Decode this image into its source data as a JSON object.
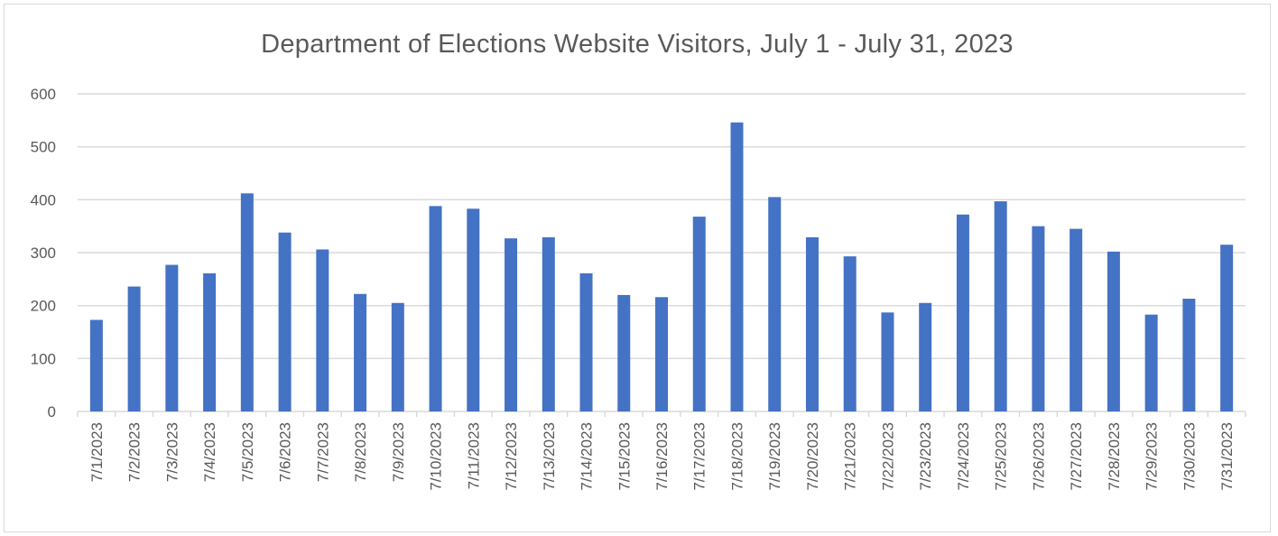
{
  "chart_data": {
    "type": "bar",
    "title": "Department of Elections Website Visitors, July 1 - July 31, 2023",
    "xlabel": "",
    "ylabel": "",
    "categories": [
      "7/1/2023",
      "7/2/2023",
      "7/3/2023",
      "7/4/2023",
      "7/5/2023",
      "7/6/2023",
      "7/7/2023",
      "7/8/2023",
      "7/9/2023",
      "7/10/2023",
      "7/11/2023",
      "7/12/2023",
      "7/13/2023",
      "7/14/2023",
      "7/15/2023",
      "7/16/2023",
      "7/17/2023",
      "7/18/2023",
      "7/19/2023",
      "7/20/2023",
      "7/21/2023",
      "7/22/2023",
      "7/23/2023",
      "7/24/2023",
      "7/25/2023",
      "7/26/2023",
      "7/27/2023",
      "7/28/2023",
      "7/29/2023",
      "7/30/2023",
      "7/31/2023"
    ],
    "values": [
      173,
      236,
      277,
      261,
      412,
      338,
      306,
      222,
      205,
      388,
      383,
      327,
      329,
      261,
      220,
      216,
      368,
      546,
      405,
      329,
      293,
      187,
      205,
      372,
      397,
      350,
      345,
      302,
      183,
      213,
      315
    ],
    "ylim": [
      0,
      600
    ],
    "yticks": [
      0,
      100,
      200,
      300,
      400,
      500,
      600
    ],
    "grid": true,
    "legend": "none",
    "bar_color": "#4472c4",
    "grid_color": "#d9d9d9",
    "text_color": "#595959"
  }
}
